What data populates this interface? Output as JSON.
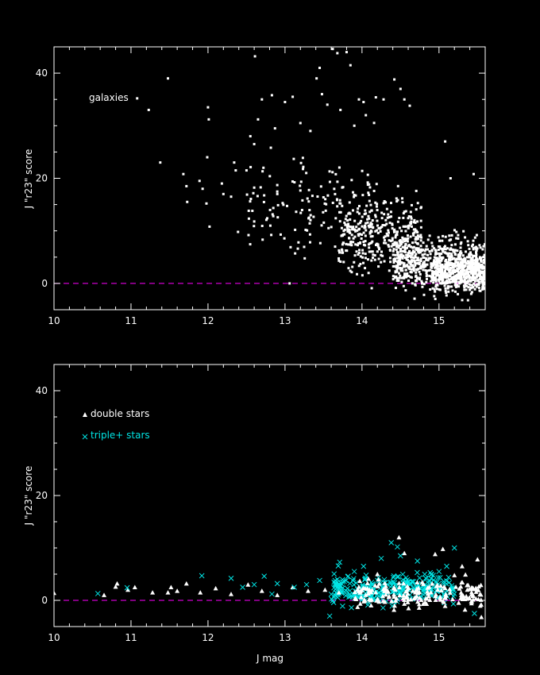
{
  "chart_data": [
    {
      "type": "scatter",
      "panel": "top",
      "title": "",
      "xlabel": "",
      "ylabel": "J \"r23\" score",
      "xlim": [
        10,
        15.6
      ],
      "ylim": [
        -5,
        45
      ],
      "xticks": [
        10,
        11,
        12,
        13,
        14,
        15
      ],
      "yticks": [
        0,
        20,
        40
      ],
      "reference_line": {
        "y": 0,
        "style": "dashed",
        "color": "#ff00ff"
      },
      "legend": {
        "placement": "top-left"
      },
      "series": [
        {
          "name": "galaxies",
          "marker": "dot",
          "color": "#ffffff",
          "points": [
            [
              11.08,
              35.2
            ],
            [
              11.23,
              33.0
            ],
            [
              11.38,
              23.0
            ],
            [
              11.48,
              39.0
            ],
            [
              11.68,
              20.8
            ],
            [
              11.72,
              18.5
            ],
            [
              11.73,
              15.5
            ],
            [
              11.89,
              19.5
            ],
            [
              11.93,
              18.0
            ],
            [
              11.98,
              15.2
            ],
            [
              11.99,
              24.0
            ],
            [
              12.0,
              33.5
            ],
            [
              12.01,
              31.2
            ],
            [
              12.02,
              10.8
            ],
            [
              12.18,
              19.0
            ],
            [
              12.2,
              17.0
            ],
            [
              12.3,
              16.5
            ],
            [
              12.34,
              23.0
            ],
            [
              12.36,
              21.5
            ],
            [
              12.39,
              9.8
            ],
            [
              12.5,
              21.5
            ],
            [
              12.55,
              28.0
            ],
            [
              12.6,
              26.5
            ],
            [
              12.61,
              43.2
            ],
            [
              12.65,
              31.2
            ],
            [
              12.7,
              35.0
            ],
            [
              12.72,
              22.0
            ],
            [
              12.83,
              35.8
            ],
            [
              12.87,
              29.5
            ],
            [
              12.9,
              17.0
            ],
            [
              13.0,
              34.5
            ],
            [
              13.06,
              0.0
            ],
            [
              13.1,
              35.5
            ],
            [
              13.2,
              30.5
            ],
            [
              13.33,
              29.0
            ],
            [
              13.41,
              39.0
            ],
            [
              13.45,
              41.0
            ],
            [
              13.48,
              36.0
            ],
            [
              13.55,
              34.0
            ],
            [
              13.62,
              44.6
            ],
            [
              13.68,
              43.8
            ],
            [
              13.72,
              33.0
            ],
            [
              13.8,
              44.0
            ],
            [
              13.85,
              41.5
            ],
            [
              13.9,
              30.0
            ],
            [
              13.96,
              35.0
            ],
            [
              14.02,
              34.5
            ],
            [
              14.05,
              32.0
            ],
            [
              14.18,
              35.4
            ],
            [
              14.28,
              35.0
            ],
            [
              14.42,
              38.8
            ],
            [
              14.5,
              37.0
            ],
            [
              14.55,
              35.0
            ],
            [
              14.62,
              33.8
            ],
            [
              15.08,
              27.0
            ],
            [
              15.15,
              20.0
            ],
            [
              15.45,
              20.8
            ]
          ]
        }
      ],
      "dense_cloud": {
        "color": "#ffffff",
        "seed": 7,
        "groups": [
          {
            "n": 160,
            "x_range": [
              12.5,
              14.2
            ],
            "y_center": 14,
            "y_spread": 8
          },
          {
            "n": 340,
            "x_range": [
              13.7,
              14.8
            ],
            "y_center": 9,
            "y_spread": 6
          },
          {
            "n": 650,
            "x_range": [
              14.4,
              15.6
            ],
            "y_center": 4,
            "y_spread": 4.5
          },
          {
            "n": 420,
            "x_range": [
              14.9,
              15.6
            ],
            "y_center": 2,
            "y_spread": 3
          }
        ]
      }
    },
    {
      "type": "scatter",
      "panel": "bottom",
      "title": "",
      "xlabel": "J mag",
      "ylabel": "J \"r23\" score",
      "xlim": [
        10,
        15.6
      ],
      "ylim": [
        -5,
        45
      ],
      "xticks": [
        10,
        11,
        12,
        13,
        14,
        15
      ],
      "yticks": [
        0,
        20,
        40
      ],
      "reference_line": {
        "y": 0,
        "style": "dashed",
        "color": "#ff00ff"
      },
      "legend": {
        "placement": "top-left"
      },
      "series": [
        {
          "name": "double stars",
          "marker": "triangle",
          "color": "#ffffff",
          "points": [
            [
              10.0,
              1.4
            ],
            [
              10.65,
              1.0
            ],
            [
              10.8,
              2.6
            ],
            [
              10.82,
              3.2
            ],
            [
              10.96,
              2.0
            ],
            [
              11.05,
              2.5
            ],
            [
              11.28,
              1.5
            ],
            [
              11.48,
              1.5
            ],
            [
              11.52,
              2.5
            ],
            [
              11.6,
              1.8
            ],
            [
              11.72,
              3.2
            ],
            [
              11.9,
              1.5
            ],
            [
              12.1,
              2.3
            ],
            [
              12.3,
              1.2
            ],
            [
              12.52,
              3.0
            ],
            [
              12.7,
              1.8
            ],
            [
              12.9,
              1.0
            ],
            [
              13.1,
              2.5
            ],
            [
              13.3,
              1.8
            ],
            [
              13.52,
              2.0
            ],
            [
              13.7,
              1.5
            ],
            [
              14.2,
              5.0
            ],
            [
              14.48,
              12.0
            ],
            [
              14.55,
              9.0
            ],
            [
              14.95,
              8.8
            ],
            [
              15.05,
              9.8
            ],
            [
              15.2,
              4.8
            ],
            [
              15.3,
              6.5
            ],
            [
              15.5,
              7.8
            ],
            [
              15.55,
              -3.2
            ]
          ]
        },
        {
          "name": "triple+ stars",
          "marker": "cross",
          "color": "#00e5e5",
          "points": [
            [
              10.57,
              1.3
            ],
            [
              10.95,
              2.4
            ],
            [
              11.92,
              4.7
            ],
            [
              12.3,
              4.2
            ],
            [
              12.45,
              2.5
            ],
            [
              12.6,
              3.0
            ],
            [
              12.73,
              4.6
            ],
            [
              12.83,
              1.2
            ],
            [
              12.9,
              3.2
            ],
            [
              13.12,
              2.5
            ],
            [
              13.28,
              3.0
            ],
            [
              13.45,
              3.8
            ],
            [
              13.58,
              -3.0
            ],
            [
              13.82,
              4.6
            ],
            [
              13.9,
              5.5
            ],
            [
              14.02,
              6.5
            ],
            [
              14.25,
              8.0
            ],
            [
              14.38,
              11.0
            ],
            [
              14.46,
              10.2
            ],
            [
              14.5,
              8.5
            ],
            [
              14.72,
              7.5
            ],
            [
              14.9,
              5.0
            ],
            [
              15.0,
              5.5
            ],
            [
              15.1,
              6.5
            ],
            [
              15.2,
              10.0
            ],
            [
              15.46,
              -2.5
            ]
          ]
        }
      ],
      "dense_cloud": {
        "seed": 11,
        "groups": [
          {
            "n": 300,
            "x_range": [
              13.6,
              15.2
            ],
            "y_center": 2.2,
            "y_spread": 2.6,
            "marker": "cross",
            "color": "#00e5e5"
          },
          {
            "n": 190,
            "x_range": [
              13.9,
              15.55
            ],
            "y_center": 1.2,
            "y_spread": 2.4,
            "marker": "triangle",
            "color": "#ffffff"
          }
        ]
      }
    }
  ]
}
